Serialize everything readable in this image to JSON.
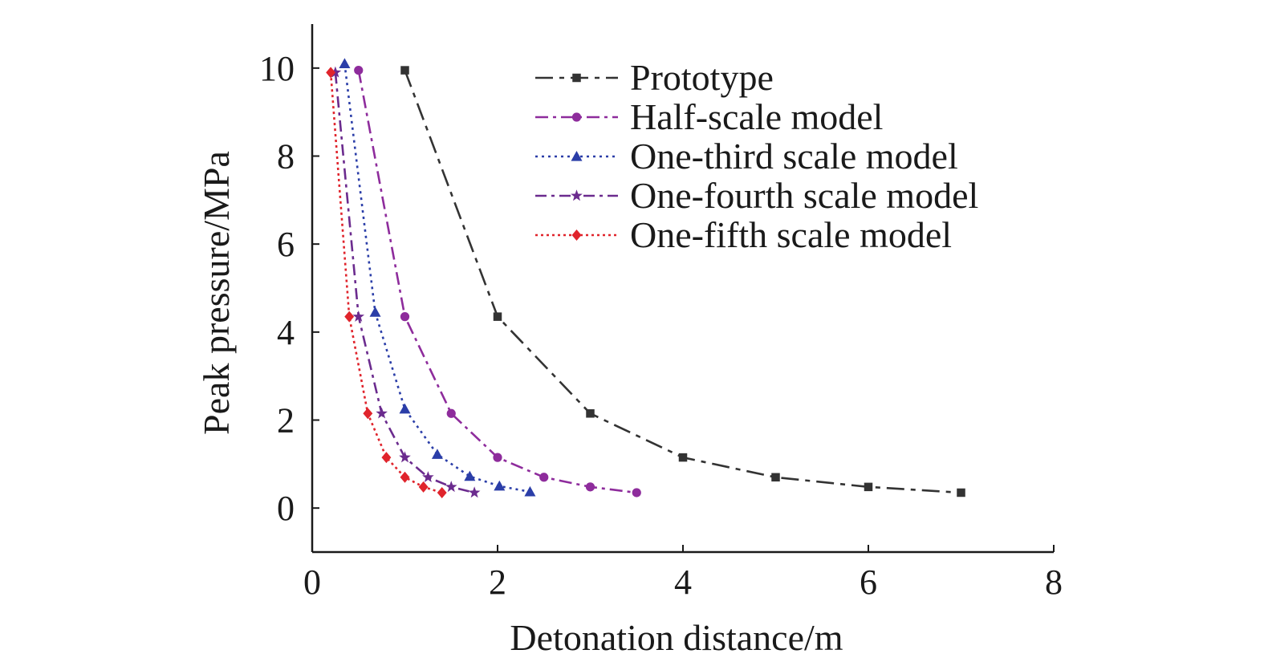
{
  "chart_data": {
    "type": "line",
    "title": "",
    "xlabel": "Detonation distance/m",
    "ylabel": "Peak pressure/MPa",
    "xlim": [
      0,
      8
    ],
    "ylim": [
      -1,
      11
    ],
    "xticks": [
      0,
      2,
      4,
      6,
      8
    ],
    "yticks": [
      0,
      2,
      4,
      6,
      8,
      10
    ],
    "grid": false,
    "legend_position": "top-right",
    "series": [
      {
        "name": "Prototype",
        "color": "#333333",
        "marker": "square",
        "dash": "22 8 6 8",
        "x": [
          1,
          2,
          3,
          4,
          5,
          6,
          7
        ],
        "y": [
          9.95,
          4.35,
          2.15,
          1.15,
          0.7,
          0.48,
          0.35
        ]
      },
      {
        "name": "Half-scale model",
        "color": "#8e2c9c",
        "marker": "circle",
        "dash": "16 6 4 6",
        "x": [
          0.5,
          1,
          1.5,
          2,
          2.5,
          3,
          3.5
        ],
        "y": [
          9.95,
          4.35,
          2.15,
          1.15,
          0.7,
          0.48,
          0.35
        ]
      },
      {
        "name": "One-third scale model",
        "color": "#2b3ea8",
        "marker": "triangle",
        "dash": "3 5",
        "x": [
          0.35,
          0.68,
          1.0,
          1.35,
          1.7,
          2.02,
          2.35
        ],
        "y": [
          10.1,
          4.45,
          2.25,
          1.22,
          0.72,
          0.5,
          0.37
        ]
      },
      {
        "name": "One-fourth scale model",
        "color": "#6b2b8e",
        "marker": "star",
        "dash": "14 6 4 6",
        "x": [
          0.25,
          0.5,
          0.75,
          1.0,
          1.25,
          1.5,
          1.75
        ],
        "y": [
          9.9,
          4.35,
          2.15,
          1.15,
          0.7,
          0.48,
          0.35
        ]
      },
      {
        "name": "One-fifth scale model",
        "color": "#e0242c",
        "marker": "diamond",
        "dash": "3 4",
        "x": [
          0.2,
          0.4,
          0.6,
          0.8,
          1.0,
          1.2,
          1.4
        ],
        "y": [
          9.9,
          4.35,
          2.15,
          1.15,
          0.7,
          0.48,
          0.35
        ]
      }
    ]
  }
}
